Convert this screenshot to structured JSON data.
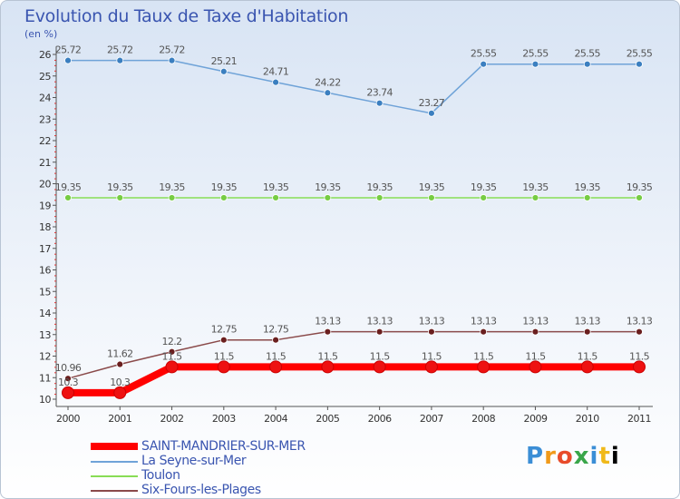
{
  "title": "Evolution du Taux de Taxe d'Habitation",
  "unit_label": "(en %)",
  "logo_text": "Proxiti",
  "colors": {
    "axis": "#555555",
    "grid_marker": "#dd3333"
  },
  "chart_data": {
    "type": "line",
    "title": "Evolution du Taux de Taxe d'Habitation",
    "ylabel": "(en %)",
    "xlabel": "",
    "x": [
      "2000",
      "2001",
      "2002",
      "2003",
      "2004",
      "2005",
      "2006",
      "2007",
      "2008",
      "2009",
      "2010",
      "2011"
    ],
    "ylim": [
      10,
      26
    ],
    "yticks": [
      10,
      11,
      12,
      13,
      14,
      15,
      16,
      17,
      18,
      19,
      20,
      21,
      22,
      23,
      24,
      25,
      26
    ],
    "legend_position": "bottom-left",
    "grid": false,
    "series": [
      {
        "name": "SAINT-MANDRIER-SUR-MER",
        "color": "#ff0000",
        "marker_color": "#ee1111",
        "width": 8,
        "values": [
          10.3,
          10.3,
          11.5,
          11.5,
          11.5,
          11.5,
          11.5,
          11.5,
          11.5,
          11.5,
          11.5,
          11.5
        ],
        "labels": [
          "10.3",
          "10.3",
          "11.5",
          "11.5",
          "11.5",
          "11.5",
          "11.5",
          "11.5",
          "11.5",
          "11.5",
          "11.5",
          "11.5"
        ]
      },
      {
        "name": "La Seyne-sur-Mer",
        "color": "#6fa3d8",
        "marker_color": "#3b7fc0",
        "width": 1.5,
        "values": [
          25.72,
          25.72,
          25.72,
          25.21,
          24.71,
          24.22,
          23.74,
          23.27,
          25.55,
          25.55,
          25.55,
          25.55
        ],
        "labels": [
          "25.72",
          "25.72",
          "25.72",
          "25.21",
          "24.71",
          "24.22",
          "23.74",
          "23.27",
          "25.55",
          "25.55",
          "25.55",
          "25.55"
        ]
      },
      {
        "name": "Toulon",
        "color": "#88dd55",
        "marker_color": "#77cc44",
        "width": 1.5,
        "values": [
          19.35,
          19.35,
          19.35,
          19.35,
          19.35,
          19.35,
          19.35,
          19.35,
          19.35,
          19.35,
          19.35,
          19.35
        ],
        "labels": [
          "19.35",
          "19.35",
          "19.35",
          "19.35",
          "19.35",
          "19.35",
          "19.35",
          "19.35",
          "19.35",
          "19.35",
          "19.35",
          "19.35"
        ]
      },
      {
        "name": "Six-Fours-les-Plages",
        "color": "#8a4a4a",
        "marker_color": "#6a1f1f",
        "width": 1.5,
        "values": [
          10.96,
          11.62,
          12.2,
          12.75,
          12.75,
          13.13,
          13.13,
          13.13,
          13.13,
          13.13,
          13.13,
          13.13
        ],
        "labels": [
          "10.96",
          "11.62",
          "12.2",
          "12.75",
          "12.75",
          "13.13",
          "13.13",
          "13.13",
          "13.13",
          "13.13",
          "13.13",
          "13.13"
        ]
      }
    ]
  }
}
